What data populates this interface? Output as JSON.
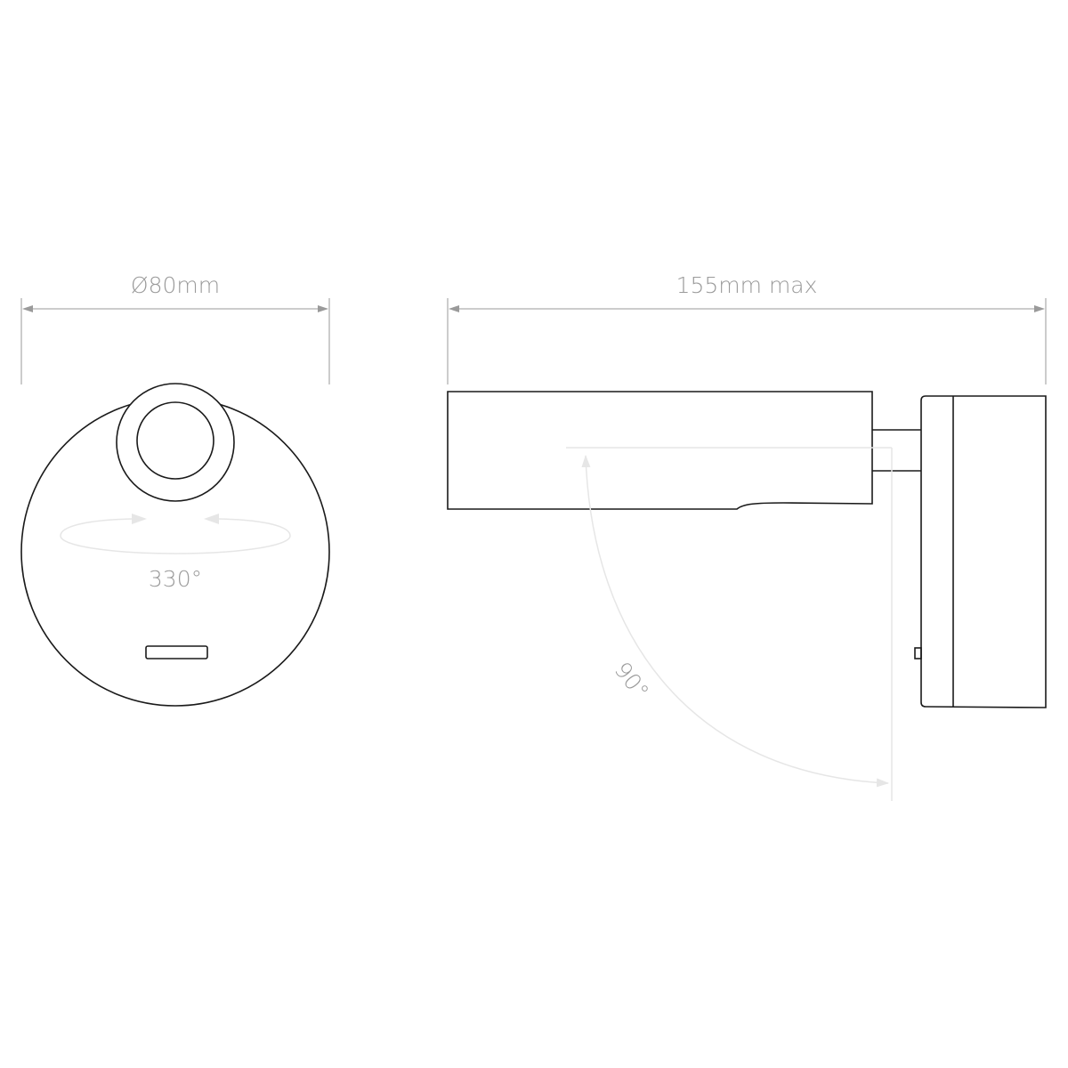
{
  "front_view": {
    "diameter_label": "Ø80mm",
    "rotation_label": "330°"
  },
  "side_view": {
    "length_label": "155mm max",
    "tilt_label": "90°"
  },
  "colors": {
    "outline": "#1a1a1a",
    "dimension": "#9a9a9a",
    "guide": "#e6e6e6"
  }
}
